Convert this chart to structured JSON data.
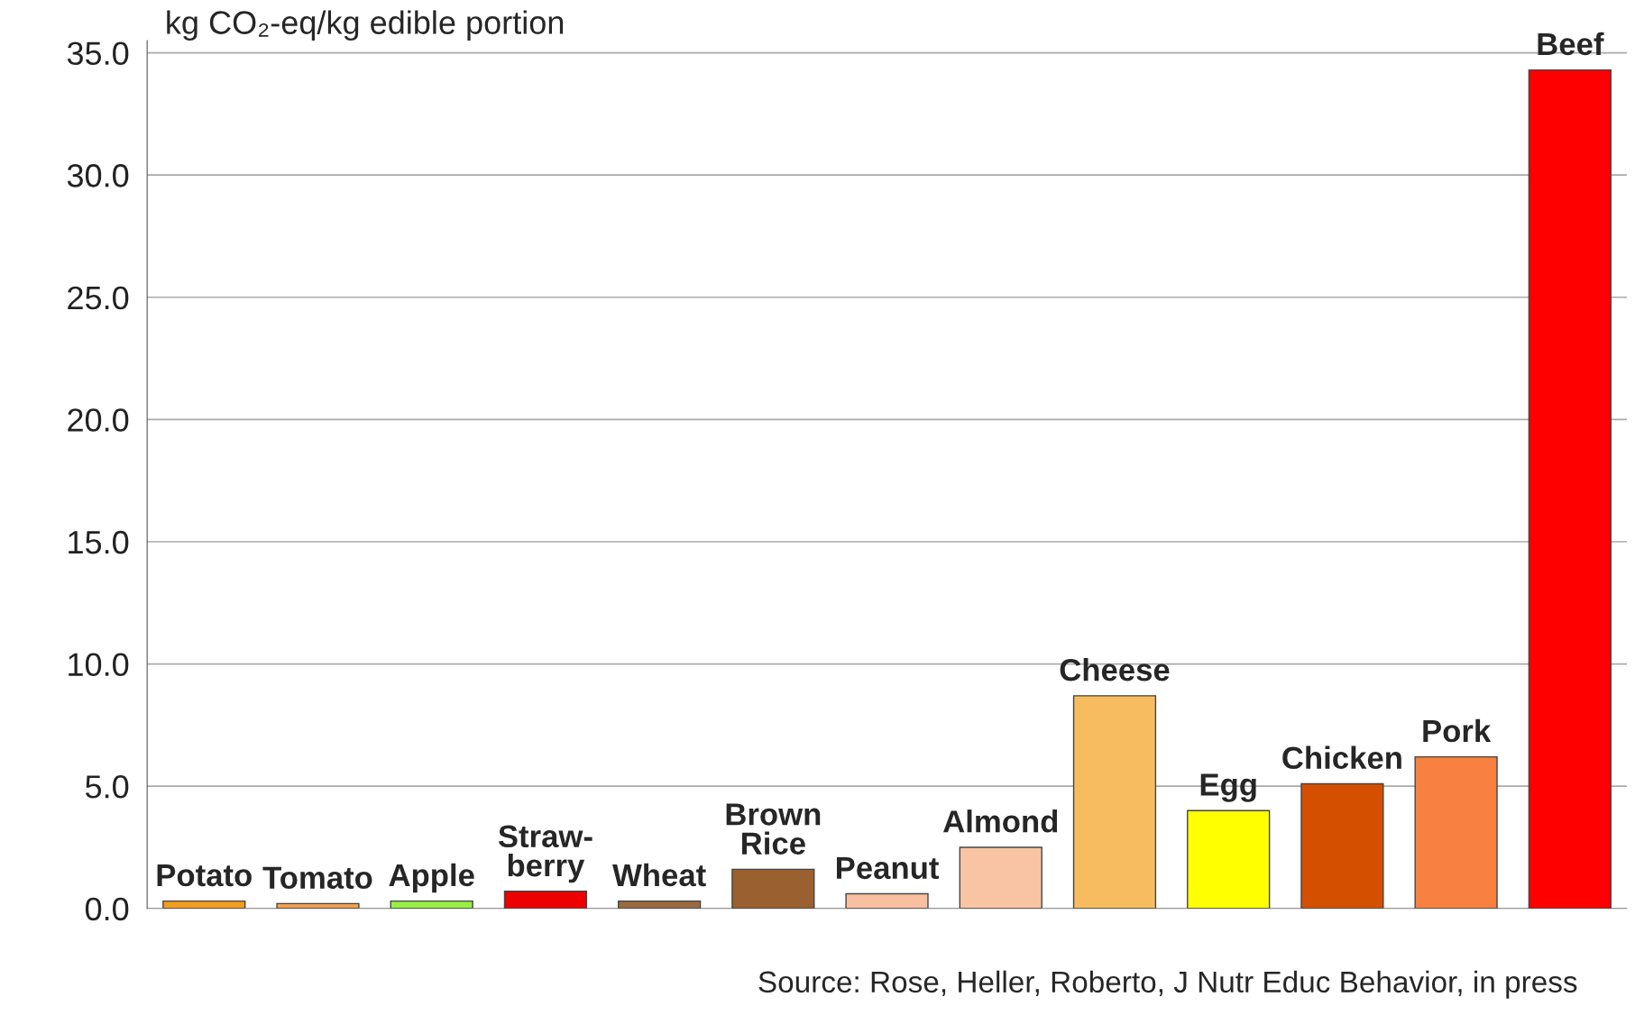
{
  "chart_data": {
    "type": "bar",
    "ylabel": "kg CO₂-eq/kg edible portion",
    "categories": [
      "Potato",
      "Tomato",
      "Apple",
      "Straw-\nberry",
      "Wheat",
      "Brown\nRice",
      "Peanut",
      "Almond",
      "Cheese",
      "Egg",
      "Chicken",
      "Pork",
      "Beef"
    ],
    "values": [
      0.3,
      0.2,
      0.3,
      0.7,
      0.3,
      1.6,
      0.6,
      2.5,
      8.7,
      4.0,
      5.1,
      6.2,
      34.3
    ],
    "colors": [
      "#f39c1f",
      "#f0a050",
      "#99ee44",
      "#ee0000",
      "#9a6a40",
      "#9a6030",
      "#f8c0a0",
      "#f8c4a4",
      "#f8bc60",
      "#ffff00",
      "#d45000",
      "#f88040",
      "#ff0000"
    ],
    "ylim": [
      0,
      35.5
    ],
    "yticks": [
      {
        "value": 0,
        "label": "0.0"
      },
      {
        "value": 5,
        "label": "5.0"
      },
      {
        "value": 10,
        "label": "10.0"
      },
      {
        "value": 15,
        "label": "15.0"
      },
      {
        "value": 20,
        "label": "20.0"
      },
      {
        "value": 25,
        "label": "25.0"
      },
      {
        "value": 30,
        "label": "30.0"
      },
      {
        "value": 35,
        "label": "35.0"
      }
    ],
    "grid": "y",
    "annotations": [
      "Source: Rose, Heller, Roberto, J Nutr Educ Behavior, in press"
    ]
  }
}
